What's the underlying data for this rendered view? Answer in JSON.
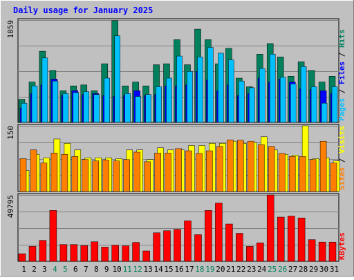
{
  "colors": {
    "frame_bg": "#c0c0c0",
    "plot_bg": "#c0c0c0",
    "grid": "#808080",
    "title": "#0000ff",
    "hits": "#00805c",
    "files": "#0000ff",
    "pages": "#00c0ff",
    "visits": "#ffff00",
    "sites": "#ff8000",
    "kbytes": "#ff0000",
    "weekend_label": "#00805c",
    "day_label": "#000000",
    "separator": "#000000"
  },
  "chart_data": {
    "type": "bar",
    "title": "Daily usage for January 2025",
    "x": [
      "1",
      "2",
      "3",
      "4",
      "5",
      "6",
      "7",
      "8",
      "9",
      "10",
      "11",
      "12",
      "13",
      "14",
      "15",
      "16",
      "17",
      "18",
      "19",
      "20",
      "21",
      "22",
      "23",
      "24",
      "25",
      "26",
      "27",
      "28",
      "29",
      "30",
      "31"
    ],
    "weekend_days": [
      "4",
      "5",
      "11",
      "12",
      "18",
      "19",
      "25",
      "26"
    ],
    "panels": [
      {
        "name": "hits-files-pages",
        "ymax_label": "1059",
        "ymax": 1059,
        "axis_label_parts": [
          {
            "text": "Pages",
            "color_key": "pages"
          },
          {
            "text": " / ",
            "color_key": "separator"
          },
          {
            "text": "Files",
            "color_key": "files"
          },
          {
            "text": " / ",
            "color_key": "separator"
          },
          {
            "text": "Hits",
            "color_key": "hits"
          }
        ],
        "series": [
          {
            "name": "Hits",
            "color_key": "hits",
            "values": [
              240,
              420,
              740,
              540,
              330,
              380,
              390,
              330,
              610,
              1059,
              380,
              420,
              380,
              600,
              610,
              860,
              600,
              970,
              860,
              610,
              770,
              460,
              370,
              710,
              820,
              680,
              480,
              630,
              540,
              420,
              480
            ]
          },
          {
            "name": "Files",
            "color_key": "files",
            "values": [
              150,
              300,
              390,
              450,
              280,
              330,
              290,
              300,
              280,
              270,
              280,
              330,
              280,
              290,
              380,
              380,
              390,
              530,
              440,
              330,
              390,
              280,
              300,
              460,
              420,
              450,
              420,
              350,
              340,
              330,
              300
            ]
          },
          {
            "name": "Pages",
            "color_key": "pages",
            "values": [
              200,
              380,
              670,
              430,
              300,
              310,
              320,
              290,
              460,
              900,
              300,
              270,
              290,
              370,
              460,
              690,
              530,
              680,
              780,
              720,
              650,
              430,
              360,
              560,
              710,
              470,
              400,
              580,
              370,
              200,
              370
            ]
          }
        ]
      },
      {
        "name": "visits-sites",
        "ymax_label": "150",
        "ymax": 150,
        "axis_label_parts": [
          {
            "text": "Sites",
            "color_key": "sites"
          },
          {
            "text": " / ",
            "color_key": "separator"
          },
          {
            "text": "Visits",
            "color_key": "visits"
          }
        ],
        "series": [
          {
            "name": "Visits",
            "color_key": "visits",
            "values": [
              48,
              85,
              77,
              120,
              110,
              95,
              77,
              77,
              77,
              75,
              95,
              95,
              73,
              100,
              95,
              95,
              105,
              105,
              110,
              110,
              115,
              110,
              112,
              125,
              95,
              85,
              83,
              150,
              75,
              77,
              70
            ]
          },
          {
            "name": "Sites",
            "color_key": "sites",
            "values": [
              75,
              95,
              65,
              88,
              85,
              80,
              73,
              70,
              72,
              70,
              73,
              90,
              68,
              88,
              88,
              98,
              93,
              87,
              93,
              103,
              118,
              117,
              115,
              107,
              103,
              87,
              80,
              80,
              73,
              115,
              65
            ]
          }
        ]
      },
      {
        "name": "kbytes",
        "ymax_label": "49795",
        "ymax": 49795,
        "axis_label_parts": [
          {
            "text": "KBytes",
            "color_key": "kbytes"
          }
        ],
        "series": [
          {
            "name": "KBytes",
            "color_key": "kbytes",
            "values": [
              5700,
              11200,
              15700,
              38200,
              12600,
              12600,
              11900,
              14700,
              10700,
              12100,
              11600,
              14200,
              7800,
              21400,
              23000,
              24000,
              30400,
              20000,
              38200,
              43700,
              28000,
              21000,
              11200,
              13900,
              49795,
              33200,
              34000,
              32600,
              16300,
              14400,
              14400
            ]
          }
        ]
      }
    ]
  }
}
